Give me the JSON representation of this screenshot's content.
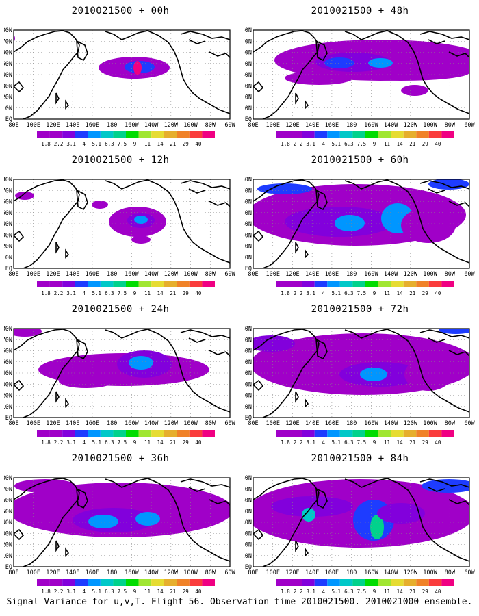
{
  "figure": {
    "caption": "Signal Variance for u,v,T. Flight 56. Observation time 2010021500. 2010021000 ensemble."
  },
  "panels": [
    {
      "title": "2010021500 + 00h"
    },
    {
      "title": "2010021500 + 48h"
    },
    {
      "title": "2010021500 + 12h"
    },
    {
      "title": "2010021500 + 60h"
    },
    {
      "title": "2010021500 + 24h"
    },
    {
      "title": "2010021500 + 72h"
    },
    {
      "title": "2010021500 + 36h"
    },
    {
      "title": "2010021500 + 84h"
    }
  ],
  "map": {
    "lat_labels": [
      "EQ",
      "10N",
      "20N",
      "30N",
      "40N",
      "50N",
      "60N",
      "70N",
      "80N"
    ],
    "lon_labels": [
      "80E",
      "100E",
      "120E",
      "140E",
      "160E",
      "180",
      "160W",
      "140W",
      "120W",
      "100W",
      "80W",
      "60W"
    ]
  },
  "colorbar": {
    "labels": [
      "1.8",
      "2.2",
      "3.1",
      "4",
      "5.1",
      "6.3",
      "7.5",
      "9",
      "11",
      "14",
      "21",
      "29",
      "40"
    ],
    "colors": [
      "#a000c8",
      "#8200dc",
      "#1e3cff",
      "#0096ff",
      "#00c8c8",
      "#00d28c",
      "#00dc00",
      "#a0e632",
      "#e6dc32",
      "#e6af2d",
      "#f08228",
      "#fa3c3c",
      "#f00082"
    ]
  }
}
